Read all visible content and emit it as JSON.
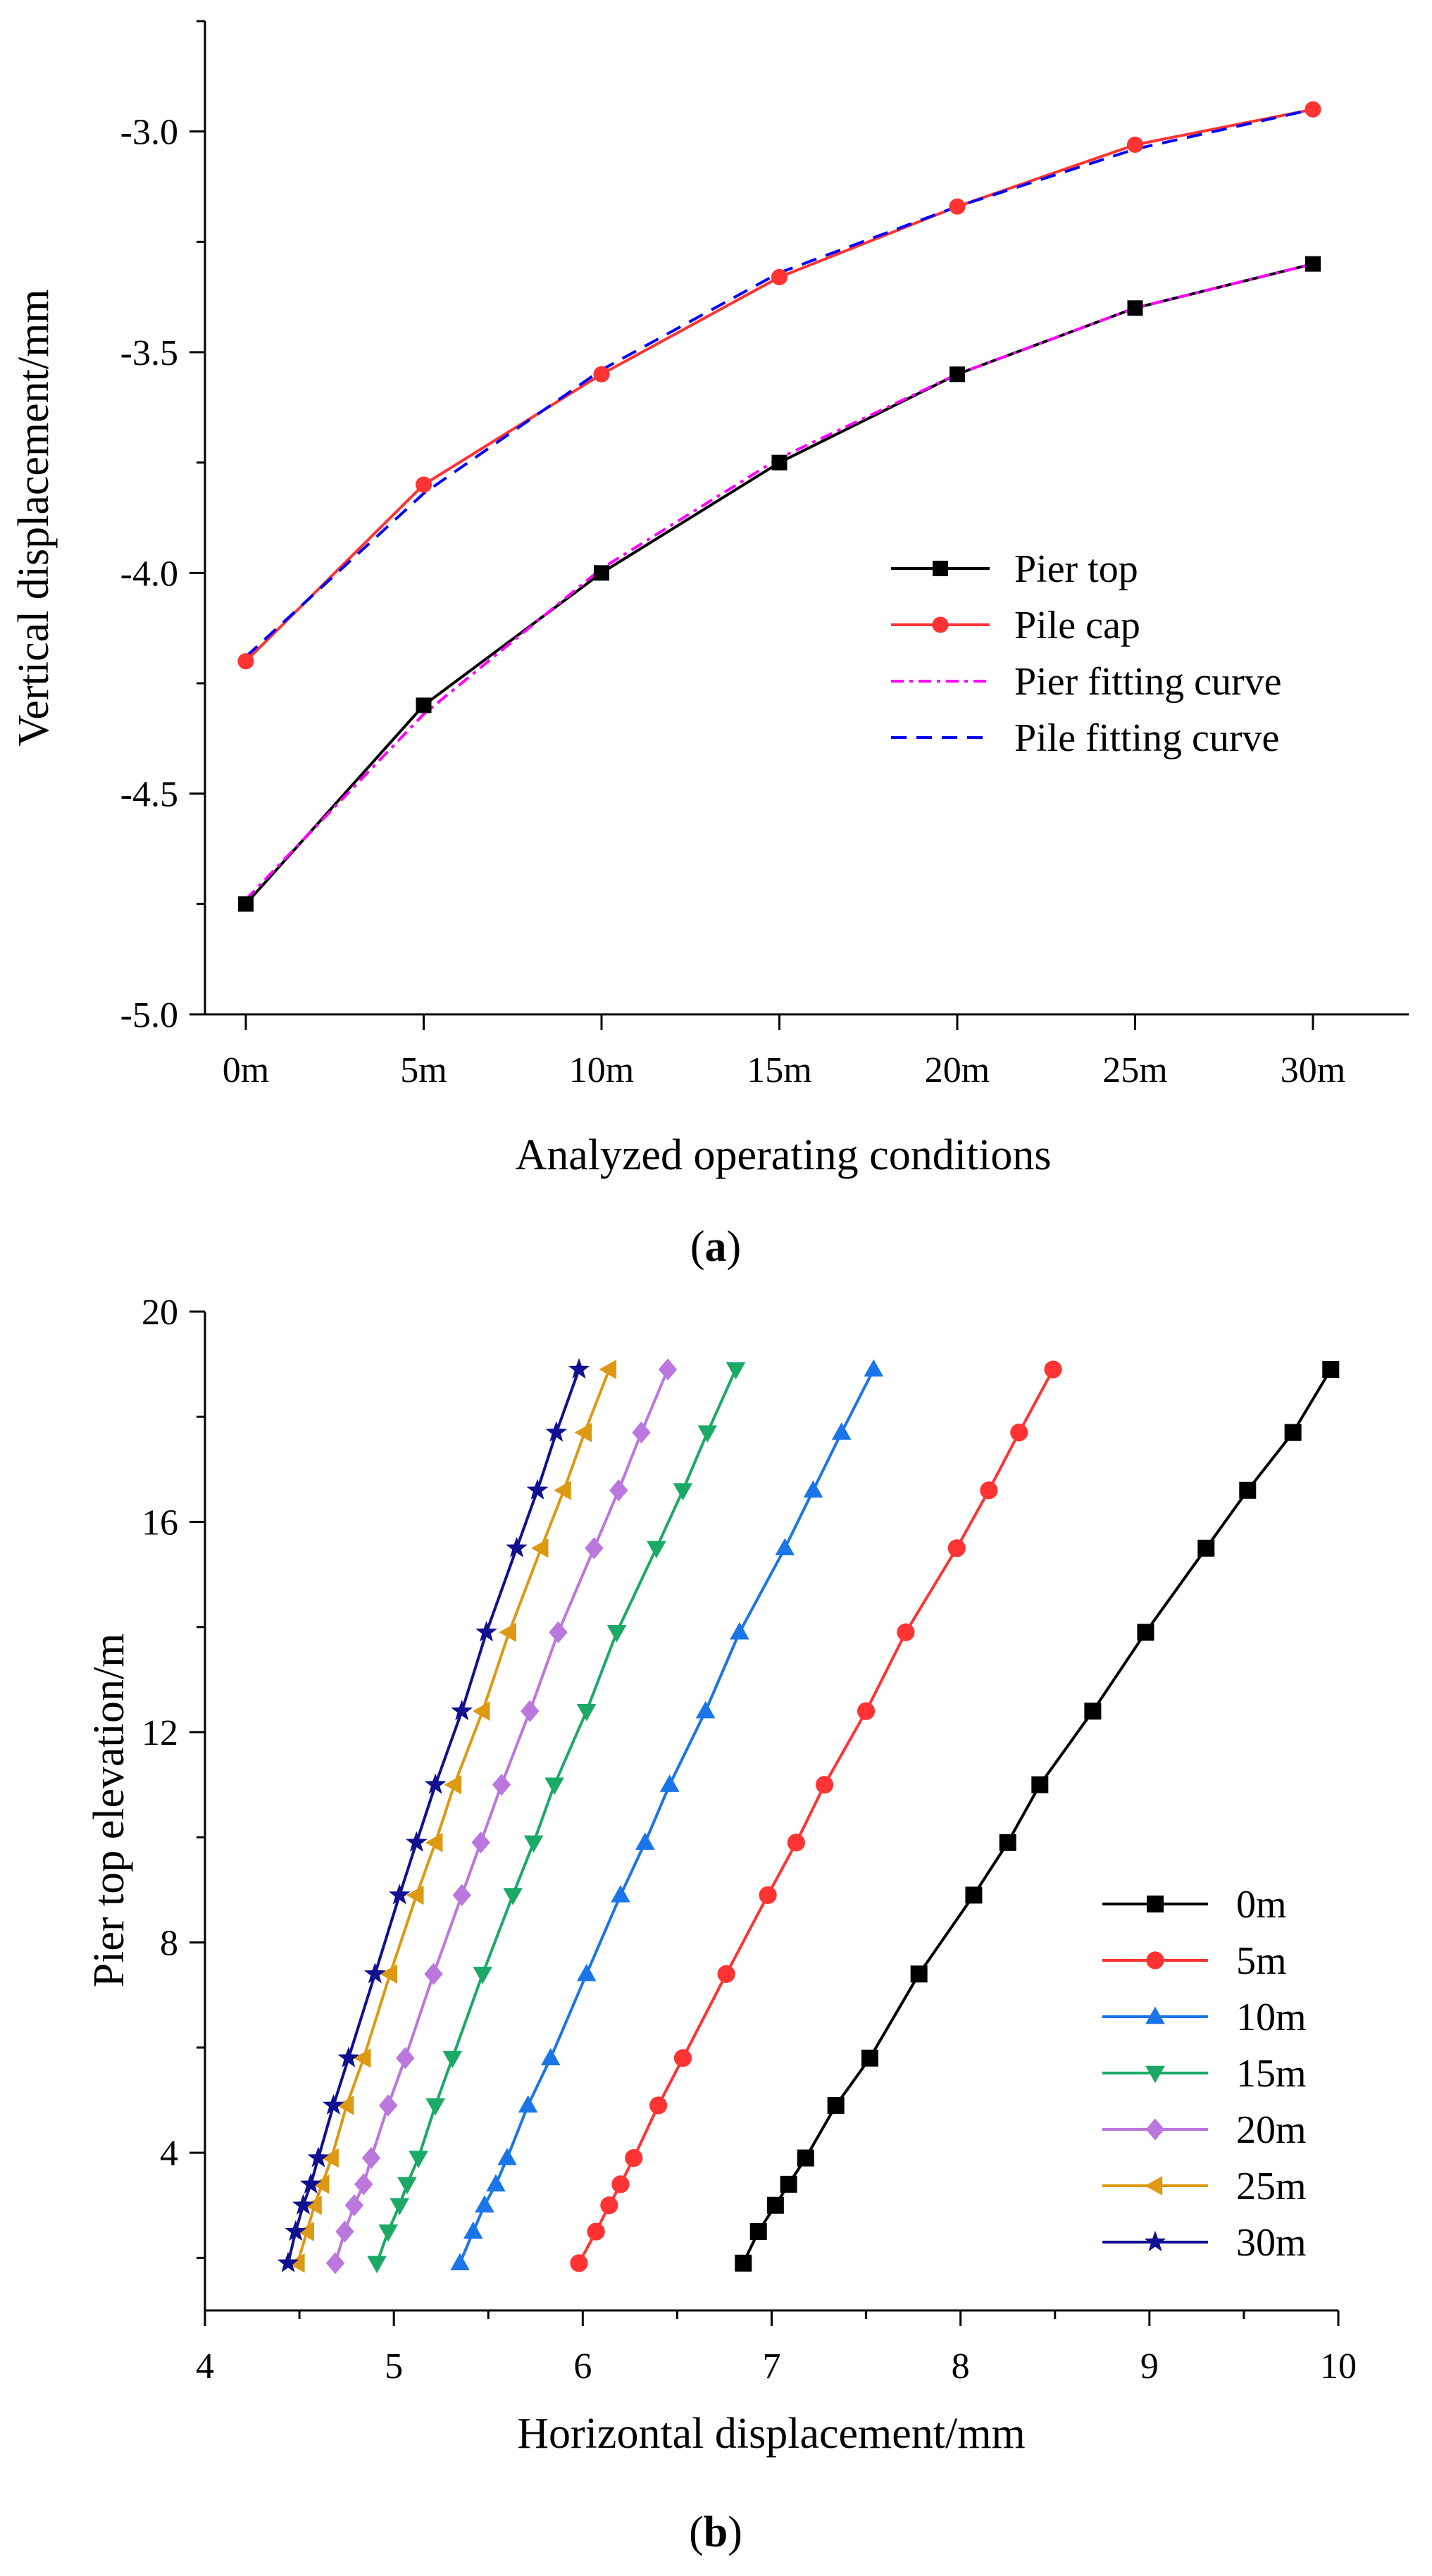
{
  "chart_data": [
    {
      "type": "line",
      "panel_label": "a",
      "xlabel": "Analyzed operating conditions",
      "ylabel": "Vertical displacement/mm",
      "categories": [
        "0m",
        "5m",
        "10m",
        "15m",
        "20m",
        "25m",
        "30m"
      ],
      "ylim": [
        -5.0,
        -2.75
      ],
      "yticks": [
        -5.0,
        -4.5,
        -4.0,
        -3.5,
        -3.0
      ],
      "ytick_labels": [
        "-5.0",
        "-4.5",
        "-4.0",
        "-3.5",
        "-3.0"
      ],
      "legend_position": "center-right",
      "series": [
        {
          "name": "Pier top",
          "color": "#000000",
          "marker": "square",
          "dash": "",
          "values": [
            -4.75,
            -4.3,
            -4.0,
            -3.75,
            -3.55,
            -3.4,
            -3.3
          ]
        },
        {
          "name": "Pile cap",
          "color": "#ff3333",
          "marker": "circle",
          "dash": "",
          "values": [
            -4.2,
            -3.8,
            -3.55,
            -3.33,
            -3.17,
            -3.03,
            -2.95
          ]
        },
        {
          "name": "Pier fitting curve",
          "color": "#ff00ff",
          "marker": "none",
          "dash": "18 8 5 8",
          "values": [
            -4.74,
            -4.32,
            -3.99,
            -3.74,
            -3.55,
            -3.4,
            -3.3
          ]
        },
        {
          "name": "Pile fitting curve",
          "color": "#0000ff",
          "marker": "none",
          "dash": "22 14",
          "values": [
            -4.19,
            -3.82,
            -3.54,
            -3.32,
            -3.17,
            -3.04,
            -2.95
          ]
        }
      ]
    },
    {
      "type": "line",
      "panel_label": "b",
      "xlabel": "Horizontal displacement/mm",
      "ylabel": "Pier top elevation/m",
      "xlim": [
        4,
        10
      ],
      "ylim": [
        1,
        20
      ],
      "xticks": [
        4,
        5,
        6,
        7,
        8,
        9,
        10
      ],
      "xtick_labels": [
        "4",
        "5",
        "6",
        "7",
        "8",
        "9",
        "10"
      ],
      "yticks": [
        4,
        8,
        12,
        16,
        20
      ],
      "ytick_labels": [
        "4",
        "8",
        "12",
        "16",
        "20"
      ],
      "legend_position": "bottom-right",
      "y": [
        1.9,
        2.5,
        3.0,
        3.4,
        3.9,
        4.9,
        5.8,
        7.4,
        8.9,
        9.9,
        11.0,
        12.4,
        13.9,
        15.5,
        16.6,
        17.7,
        18.9
      ],
      "series": [
        {
          "name": "0m",
          "color": "#000000",
          "marker": "square",
          "x": [
            6.85,
            6.93,
            7.02,
            7.09,
            7.18,
            7.34,
            7.52,
            7.78,
            8.07,
            8.25,
            8.42,
            8.7,
            8.98,
            9.3,
            9.52,
            9.76,
            9.96
          ]
        },
        {
          "name": "5m",
          "color": "#ff3333",
          "marker": "circle",
          "x": [
            5.98,
            6.07,
            6.14,
            6.2,
            6.27,
            6.4,
            6.53,
            6.76,
            6.98,
            7.13,
            7.28,
            7.5,
            7.71,
            7.98,
            8.15,
            8.31,
            8.49
          ]
        },
        {
          "name": "10m",
          "color": "#1a75e8",
          "marker": "triangle-up",
          "x": [
            5.35,
            5.42,
            5.48,
            5.54,
            5.6,
            5.71,
            5.83,
            6.02,
            6.2,
            6.33,
            6.46,
            6.65,
            6.83,
            7.07,
            7.22,
            7.37,
            7.54
          ]
        },
        {
          "name": "15m",
          "color": "#1aaa66",
          "marker": "triangle-down",
          "x": [
            4.91,
            4.97,
            5.03,
            5.07,
            5.13,
            5.22,
            5.31,
            5.47,
            5.63,
            5.74,
            5.85,
            6.02,
            6.18,
            6.39,
            6.53,
            6.66,
            6.81
          ]
        },
        {
          "name": "20m",
          "color": "#bb77dd",
          "marker": "diamond",
          "x": [
            4.69,
            4.74,
            4.79,
            4.84,
            4.88,
            4.97,
            5.06,
            5.21,
            5.36,
            5.46,
            5.57,
            5.72,
            5.87,
            6.06,
            6.19,
            6.31,
            6.45
          ]
        },
        {
          "name": "25m",
          "color": "#dd9911",
          "marker": "triangle-left",
          "x": [
            4.49,
            4.54,
            4.58,
            4.62,
            4.67,
            4.75,
            4.84,
            4.98,
            5.12,
            5.22,
            5.32,
            5.47,
            5.61,
            5.78,
            5.9,
            6.01,
            6.14
          ]
        },
        {
          "name": "30m",
          "color": "#101090",
          "marker": "star",
          "x": [
            4.44,
            4.48,
            4.52,
            4.56,
            4.6,
            4.68,
            4.76,
            4.9,
            5.03,
            5.12,
            5.22,
            5.36,
            5.49,
            5.65,
            5.76,
            5.86,
            5.98
          ]
        }
      ]
    }
  ]
}
